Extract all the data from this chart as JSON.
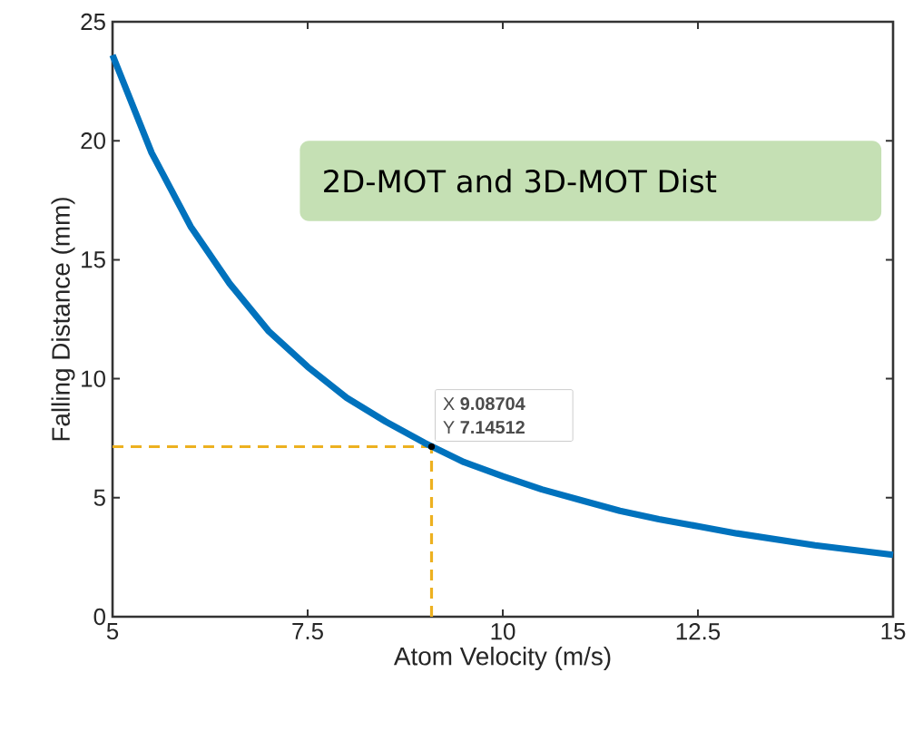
{
  "chart_data": {
    "type": "line",
    "xlabel": "Atom Velocity (m/s)",
    "ylabel": "Falling Distance (mm)",
    "xlim": [
      5,
      15
    ],
    "ylim": [
      0,
      25
    ],
    "xticks": [
      5,
      7.5,
      10,
      12.5,
      15
    ],
    "yticks": [
      0,
      5,
      10,
      15,
      20,
      25
    ],
    "x": [
      5,
      5.5,
      6,
      6.5,
      7,
      7.5,
      8,
      8.5,
      9,
      9.5,
      10,
      10.5,
      11,
      11.5,
      12,
      12.5,
      13,
      13.5,
      14,
      14.5,
      15
    ],
    "series": [
      {
        "color": "#0072bd",
        "values": [
          23.6,
          19.5,
          16.4,
          14.0,
          12.0,
          10.5,
          9.2,
          8.2,
          7.3,
          6.5,
          5.9,
          5.35,
          4.9,
          4.45,
          4.1,
          3.8,
          3.5,
          3.25,
          3.0,
          2.8,
          2.6
        ]
      }
    ],
    "ref_lines": [
      {
        "axis": "x",
        "value": 9.08704,
        "color": "#edb120",
        "line_style": "dashed"
      },
      {
        "axis": "y",
        "value": 7.14512,
        "color": "#edb120",
        "line_style": "dashed"
      }
    ],
    "annotations": [
      "2D-MOT and 3D-MOT Dist",
      {
        "text": "X **9.08704**",
        "x": 9.08704,
        "y": 7.14512
      },
      {
        "text": "Y **7.14512**",
        "x": 9.08704,
        "y": 7.14512
      }
    ]
  }
}
